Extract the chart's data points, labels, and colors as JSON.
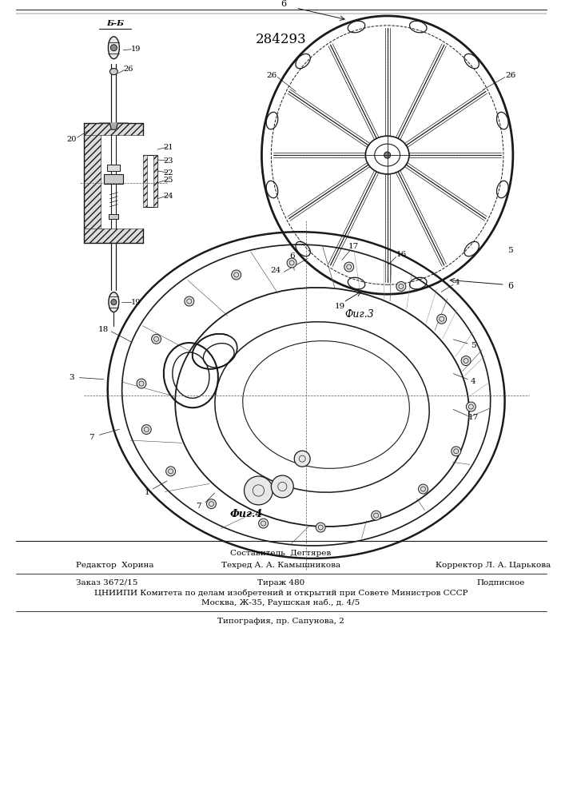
{
  "patent_number": "284293",
  "fig3_label": "Фиг.3",
  "fig4_label": "Фиг.4",
  "bb_label": "Б-Б",
  "footer_line1": "Составитель  Дегтярев",
  "footer_line2_left": "Редактор  Хорина",
  "footer_line2_mid": "Техред А. А. Камышникова",
  "footer_line2_right": "Корректор Л. А. Царькова",
  "footer_line3_left": "Заказ 3672/15",
  "footer_line3_mid": "Тираж 480",
  "footer_line3_right": "Подписное",
  "footer_line4": "ЦНИИПИ Комитета по делам изобретений и открытий при Совете Министров СССР",
  "footer_line5": "Москва, Ж-35, Раушская наб., д. 4/5",
  "footer_line6": "Типография, пр. Сапунова, 2",
  "bg_color": "#ffffff",
  "line_color": "#1a1a1a",
  "text_color": "#000000"
}
